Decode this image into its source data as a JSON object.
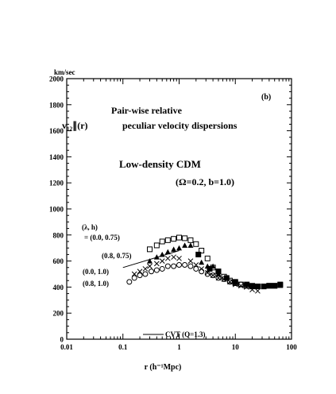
{
  "chart_data": {
    "type": "scatter",
    "xscale": "log",
    "xlim": [
      0.01,
      100
    ],
    "ylim": [
      0,
      2000
    ],
    "x_ticks": [
      "0.01",
      "0.1",
      "1",
      "10",
      "100"
    ],
    "y_ticks": [
      "0",
      "200",
      "400",
      "600",
      "800",
      "1000",
      "1200",
      "1400",
      "1600",
      "1800",
      "2000"
    ],
    "y_unit_label": "km/sec",
    "xlabel": "r (h⁻¹Mpc)",
    "panel_label": "(b)",
    "title_line1": "Pair-wise relative",
    "title_line2_a": "v₁₂∥(r)",
    "title_line2_b": "peculiar velocity dispersions",
    "model_line1": "Low-density CDM",
    "model_line2": "(Ω=0.2, b=1.0)",
    "legend_header": "(λ, h)",
    "grid": false,
    "series": [
      {
        "name": "= (0.0, 0.75)",
        "marker": "open-square",
        "points": [
          [
            0.3,
            690
          ],
          [
            0.4,
            720
          ],
          [
            0.5,
            750
          ],
          [
            0.63,
            760
          ],
          [
            0.8,
            770
          ],
          [
            1.0,
            780
          ],
          [
            1.26,
            775
          ],
          [
            1.6,
            760
          ],
          [
            2.0,
            730
          ],
          [
            2.5,
            680
          ],
          [
            3.2,
            620
          ],
          [
            4.0,
            550
          ],
          [
            5.0,
            520
          ],
          [
            6.3,
            480
          ],
          [
            8.0,
            450
          ],
          [
            10.0,
            430
          ],
          [
            12.6,
            420
          ],
          [
            15.8,
            410
          ],
          [
            20,
            405
          ],
          [
            25,
            405
          ],
          [
            32,
            405
          ],
          [
            40,
            410
          ],
          [
            50,
            410
          ],
          [
            63,
            415
          ]
        ]
      },
      {
        "name": "(0.8, 0.75)",
        "marker": "filled-triangle",
        "points": [
          [
            0.3,
            600
          ],
          [
            0.4,
            630
          ],
          [
            0.5,
            650
          ],
          [
            0.63,
            670
          ],
          [
            0.8,
            690
          ],
          [
            1.0,
            700
          ],
          [
            1.26,
            720
          ],
          [
            1.6,
            720
          ],
          [
            2.5,
            590
          ],
          [
            3.2,
            560
          ],
          [
            4.0,
            560
          ],
          [
            5.0,
            500
          ]
        ]
      },
      {
        "name": "(0.0, 1.0)",
        "marker": "cross",
        "points": [
          [
            0.16,
            500
          ],
          [
            0.2,
            520
          ],
          [
            0.25,
            540
          ],
          [
            0.3,
            560
          ],
          [
            0.4,
            580
          ],
          [
            0.5,
            600
          ],
          [
            0.63,
            620
          ],
          [
            0.8,
            630
          ],
          [
            1.0,
            620
          ],
          [
            1.6,
            600
          ],
          [
            2.0,
            570
          ],
          [
            2.5,
            540
          ],
          [
            3.2,
            510
          ],
          [
            4.0,
            490
          ],
          [
            5.0,
            470
          ],
          [
            6.3,
            460
          ],
          [
            8.0,
            440
          ],
          [
            10.0,
            420
          ],
          [
            12.6,
            410
          ],
          [
            15.8,
            400
          ],
          [
            20,
            380
          ],
          [
            25,
            370
          ]
        ]
      },
      {
        "name": "(0.8, 1.0)",
        "marker": "open-circle",
        "points": [
          [
            0.13,
            440
          ],
          [
            0.16,
            470
          ],
          [
            0.2,
            490
          ],
          [
            0.25,
            500
          ],
          [
            0.32,
            520
          ],
          [
            0.4,
            530
          ],
          [
            0.5,
            540
          ],
          [
            0.63,
            560
          ],
          [
            0.8,
            560
          ],
          [
            1.0,
            570
          ],
          [
            1.26,
            570
          ],
          [
            1.6,
            560
          ],
          [
            2.0,
            540
          ],
          [
            2.5,
            520
          ],
          [
            3.2,
            500
          ],
          [
            4.0,
            490
          ],
          [
            5.0,
            470
          ],
          [
            6.3,
            460
          ],
          [
            8.0,
            440
          ],
          [
            10.0,
            430
          ],
          [
            12.6,
            420
          ]
        ]
      },
      {
        "name": "",
        "marker": "filled-square",
        "points": [
          [
            2.2,
            650
          ],
          [
            3.5,
            540
          ],
          [
            5.0,
            520
          ],
          [
            7.0,
            470
          ],
          [
            10.0,
            440
          ],
          [
            16,
            420
          ],
          [
            20,
            410
          ],
          [
            25,
            405
          ],
          [
            32,
            405
          ],
          [
            40,
            410
          ],
          [
            50,
            410
          ],
          [
            63,
            420
          ]
        ]
      }
    ],
    "cvt_line": {
      "name": "CVT (Q=1.3)",
      "points": [
        [
          0.1,
          550
        ],
        [
          1.0,
          680
        ]
      ]
    }
  }
}
